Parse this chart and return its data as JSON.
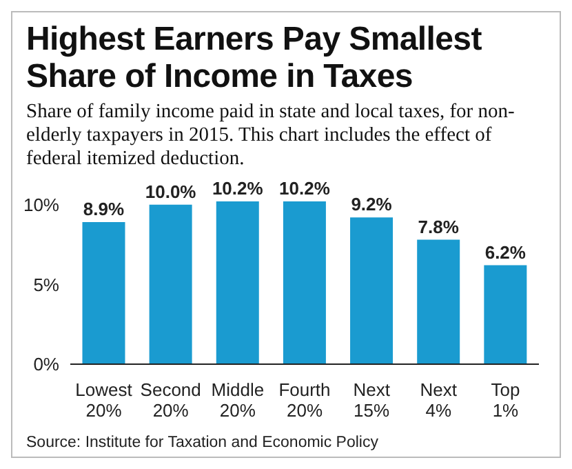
{
  "chart_data": {
    "type": "bar",
    "title": "Highest Earners Pay Smallest Share of Income in Taxes",
    "subtitle": "Share of family income paid in state and local taxes, for non-elderly taxpayers in 2015. This chart includes the effect of federal itemized deduction.",
    "categories": [
      "Lowest\n20%",
      "Second\n20%",
      "Middle\n20%",
      "Fourth\n20%",
      "Next\n15%",
      "Next\n4%",
      "Top\n1%"
    ],
    "values": [
      8.9,
      10.0,
      10.2,
      10.2,
      9.2,
      7.8,
      6.2
    ],
    "value_labels": [
      "8.9%",
      "10.0%",
      "10.2%",
      "10.2%",
      "9.2%",
      "7.8%",
      "6.2%"
    ],
    "color": "#1a9bd0",
    "ylim": [
      0,
      10.2
    ],
    "yticks": [
      {
        "value": 0,
        "label": "0%"
      },
      {
        "value": 5,
        "label": "5%"
      },
      {
        "value": 10,
        "label": "10%"
      }
    ],
    "grid": false,
    "annotations": [
      "Source: Institute for Taxation and Economic Policy"
    ]
  }
}
